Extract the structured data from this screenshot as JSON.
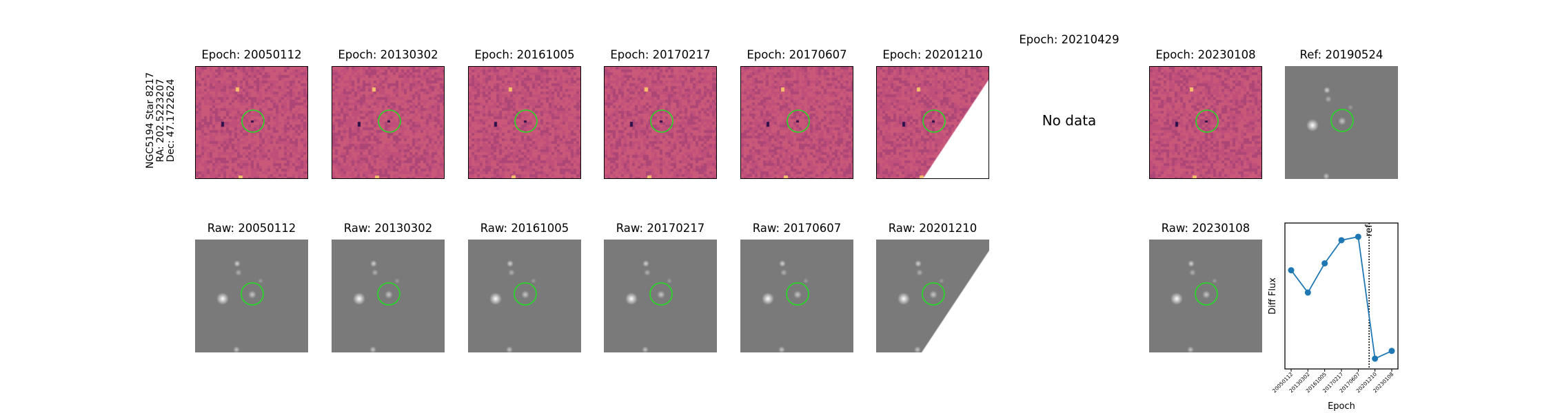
{
  "row_label": {
    "line1": "NGC5194 Star 8217",
    "line2": "RA: 202.5223207",
    "line3": "Dec: 47.1722624"
  },
  "diff_titles": [
    "Epoch: 20050112",
    "Epoch: 20130302",
    "Epoch: 20161005",
    "Epoch: 20170217",
    "Epoch: 20170607",
    "Epoch: 20201210",
    "Epoch: 20210429",
    "Epoch: 20230108"
  ],
  "ref_title": "Ref: 20190524",
  "raw_titles": [
    "Raw: 20050112",
    "Raw: 20130302",
    "Raw: 20161005",
    "Raw: 20170217",
    "Raw: 20170607",
    "Raw: 20201210",
    "Raw: 20230108"
  ],
  "no_data_text": "No data",
  "colors": {
    "diff_base": "#c0507a",
    "raw_base": "#7a7a7a",
    "circle": "#22dd22",
    "line": "#1f77b4"
  },
  "chart_data": {
    "type": "line",
    "title": "",
    "xlabel": "Epoch",
    "ylabel": "Diff Flux",
    "x": [
      "20050112",
      "20130302",
      "20161005",
      "20170217",
      "20170607",
      "20201210",
      "20230108"
    ],
    "values": [
      0.55,
      0.29,
      0.63,
      0.9,
      0.94,
      -0.48,
      -0.39
    ],
    "ylim": [
      -0.6,
      1.1
    ],
    "ref_line_label": "ref",
    "ref_line_position": 4.65,
    "grid": false,
    "legend": "none"
  }
}
